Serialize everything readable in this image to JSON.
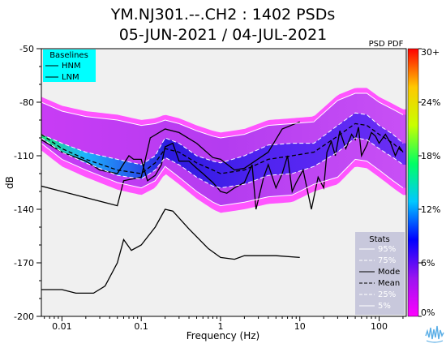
{
  "chart_data": {
    "type": "heatmap",
    "title_line1": "YM.NJ301.--.CH2 : 1402 PSDs",
    "title_line2": "05-JUN-2021 / 04-JUL-2021",
    "xlabel": "Frequency (Hz)",
    "ylabel": "dB",
    "x_scale": "log",
    "xlim": [
      0.0055,
      220
    ],
    "ylim": [
      -200,
      -50
    ],
    "x_ticks": [
      {
        "value": 0.01,
        "label": "0.01"
      },
      {
        "value": 0.1,
        "label": "0.1"
      },
      {
        "value": 1,
        "label": "1"
      },
      {
        "value": 10,
        "label": "10"
      },
      {
        "value": 100,
        "label": "100"
      }
    ],
    "y_ticks": [
      {
        "value": -50,
        "label": "-50"
      },
      {
        "value": -80,
        "label": "-80"
      },
      {
        "value": -110,
        "label": "-110"
      },
      {
        "value": -140,
        "label": "-140"
      },
      {
        "value": -170,
        "label": "-170"
      },
      {
        "value": -200,
        "label": "-200"
      }
    ],
    "colorbar": {
      "title": "PSD PDF",
      "range": [
        0,
        30
      ],
      "ticks": [
        {
          "value": 30,
          "label": "30+"
        },
        {
          "value": 24,
          "label": "24%"
        },
        {
          "value": 18,
          "label": "18%"
        },
        {
          "value": 12,
          "label": "12%"
        },
        {
          "value": 6,
          "label": "6%"
        },
        {
          "value": 0,
          "label": "0%"
        }
      ],
      "colors": [
        "#ff00ff",
        "#9a14f0",
        "#0000ff",
        "#00c8ff",
        "#00ff64",
        "#c8ff00",
        "#ffc800",
        "#ff0000"
      ]
    },
    "baselines_legend": {
      "title": "Baselines",
      "items": [
        "HNM",
        "LNM"
      ],
      "background": "#00ffff"
    },
    "stats_legend": {
      "title": "Stats",
      "items": [
        "95%",
        "75%",
        "Mode",
        "Mean",
        "25%",
        "5%"
      ],
      "background": "#c8c8dc"
    },
    "series": [
      {
        "name": "HNM",
        "style": "solid",
        "color": "#000000",
        "points": [
          [
            0.0055,
            -127
          ],
          [
            0.01,
            -130
          ],
          [
            0.05,
            -138
          ],
          [
            0.06,
            -124
          ],
          [
            0.1,
            -122
          ],
          [
            0.13,
            -100
          ],
          [
            0.2,
            -95
          ],
          [
            0.3,
            -97
          ],
          [
            0.5,
            -103
          ],
          [
            0.8,
            -111
          ],
          [
            1,
            -112
          ],
          [
            1.5,
            -118
          ],
          [
            2,
            -117
          ],
          [
            4,
            -108
          ],
          [
            6,
            -95
          ],
          [
            10,
            -91
          ]
        ]
      },
      {
        "name": "LNM",
        "style": "solid",
        "color": "#000000",
        "points": [
          [
            0.0055,
            -185
          ],
          [
            0.01,
            -185
          ],
          [
            0.015,
            -187
          ],
          [
            0.025,
            -187
          ],
          [
            0.035,
            -183
          ],
          [
            0.05,
            -170
          ],
          [
            0.06,
            -157
          ],
          [
            0.075,
            -163
          ],
          [
            0.1,
            -160
          ],
          [
            0.15,
            -150
          ],
          [
            0.2,
            -140
          ],
          [
            0.25,
            -141
          ],
          [
            0.4,
            -151
          ],
          [
            0.7,
            -162
          ],
          [
            1,
            -167
          ],
          [
            1.5,
            -168
          ],
          [
            2,
            -166
          ],
          [
            3,
            -166
          ],
          [
            5,
            -166
          ],
          [
            10,
            -167
          ]
        ]
      },
      {
        "name": "95%",
        "style": "solid",
        "color": "#ffffff",
        "points": [
          [
            0.0055,
            -80
          ],
          [
            0.01,
            -85
          ],
          [
            0.02,
            -88
          ],
          [
            0.05,
            -90
          ],
          [
            0.1,
            -93
          ],
          [
            0.15,
            -92
          ],
          [
            0.2,
            -90
          ],
          [
            0.3,
            -92
          ],
          [
            0.5,
            -96
          ],
          [
            0.8,
            -99
          ],
          [
            1,
            -100
          ],
          [
            2,
            -98
          ],
          [
            4,
            -93
          ],
          [
            8,
            -92
          ],
          [
            15,
            -91
          ],
          [
            30,
            -79
          ],
          [
            50,
            -75
          ],
          [
            70,
            -75
          ],
          [
            100,
            -80
          ],
          [
            150,
            -84
          ],
          [
            200,
            -87
          ]
        ]
      },
      {
        "name": "75%",
        "style": "dashed",
        "color": "#ffffff",
        "points": [
          [
            0.0055,
            -98
          ],
          [
            0.01,
            -103
          ],
          [
            0.02,
            -108
          ],
          [
            0.05,
            -112
          ],
          [
            0.1,
            -115
          ],
          [
            0.15,
            -110
          ],
          [
            0.2,
            -100
          ],
          [
            0.3,
            -103
          ],
          [
            0.5,
            -110
          ],
          [
            0.8,
            -113
          ],
          [
            1,
            -114
          ],
          [
            2,
            -110
          ],
          [
            4,
            -104
          ],
          [
            8,
            -103
          ],
          [
            15,
            -103
          ],
          [
            30,
            -93
          ],
          [
            50,
            -86
          ],
          [
            70,
            -87
          ],
          [
            100,
            -93
          ],
          [
            150,
            -98
          ],
          [
            200,
            -103
          ]
        ]
      },
      {
        "name": "Mode",
        "style": "solid",
        "color": "#000000",
        "points": [
          [
            0.0055,
            -101
          ],
          [
            0.01,
            -108
          ],
          [
            0.02,
            -113
          ],
          [
            0.03,
            -118
          ],
          [
            0.05,
            -120
          ],
          [
            0.07,
            -110
          ],
          [
            0.08,
            -112
          ],
          [
            0.1,
            -112
          ],
          [
            0.12,
            -124
          ],
          [
            0.15,
            -121
          ],
          [
            0.18,
            -115
          ],
          [
            0.2,
            -105
          ],
          [
            0.25,
            -103
          ],
          [
            0.3,
            -113
          ],
          [
            0.4,
            -113
          ],
          [
            0.5,
            -117
          ],
          [
            0.6,
            -120
          ],
          [
            0.8,
            -125
          ],
          [
            1,
            -130
          ],
          [
            1.2,
            -131
          ],
          [
            1.5,
            -128
          ],
          [
            2,
            -125
          ],
          [
            2.5,
            -115
          ],
          [
            2.8,
            -140
          ],
          [
            3.5,
            -122
          ],
          [
            4,
            -115
          ],
          [
            5,
            -128
          ],
          [
            6,
            -120
          ],
          [
            7,
            -110
          ],
          [
            8,
            -130
          ],
          [
            9,
            -125
          ],
          [
            11,
            -118
          ],
          [
            14,
            -140
          ],
          [
            17,
            -122
          ],
          [
            20,
            -128
          ],
          [
            22,
            -108
          ],
          [
            25,
            -102
          ],
          [
            28,
            -110
          ],
          [
            32,
            -96
          ],
          [
            38,
            -106
          ],
          [
            45,
            -98
          ],
          [
            50,
            -101
          ],
          [
            55,
            -94
          ],
          [
            60,
            -110
          ],
          [
            70,
            -104
          ],
          [
            80,
            -97
          ],
          [
            90,
            -99
          ],
          [
            100,
            -103
          ],
          [
            120,
            -98
          ],
          [
            140,
            -103
          ],
          [
            160,
            -110
          ],
          [
            180,
            -105
          ],
          [
            200,
            -108
          ]
        ]
      },
      {
        "name": "Mean",
        "style": "dashed",
        "color": "#000000",
        "points": [
          [
            0.0055,
            -98
          ],
          [
            0.01,
            -106
          ],
          [
            0.02,
            -112
          ],
          [
            0.05,
            -118
          ],
          [
            0.1,
            -120
          ],
          [
            0.15,
            -114
          ],
          [
            0.2,
            -106
          ],
          [
            0.3,
            -108
          ],
          [
            0.5,
            -114
          ],
          [
            0.8,
            -118
          ],
          [
            1,
            -120
          ],
          [
            2,
            -118
          ],
          [
            4,
            -112
          ],
          [
            8,
            -110
          ],
          [
            15,
            -108
          ],
          [
            30,
            -99
          ],
          [
            50,
            -92
          ],
          [
            70,
            -93
          ],
          [
            100,
            -98
          ],
          [
            150,
            -103
          ],
          [
            200,
            -108
          ]
        ]
      },
      {
        "name": "25%",
        "style": "dashed",
        "color": "#ffffff",
        "points": [
          [
            0.0055,
            -100
          ],
          [
            0.01,
            -108
          ],
          [
            0.02,
            -114
          ],
          [
            0.05,
            -121
          ],
          [
            0.1,
            -123
          ],
          [
            0.15,
            -118
          ],
          [
            0.2,
            -111
          ],
          [
            0.3,
            -115
          ],
          [
            0.5,
            -122
          ],
          [
            0.8,
            -127
          ],
          [
            1,
            -128
          ],
          [
            2,
            -126
          ],
          [
            4,
            -121
          ],
          [
            8,
            -120
          ],
          [
            15,
            -116
          ],
          [
            30,
            -108
          ],
          [
            50,
            -100
          ],
          [
            70,
            -101
          ],
          [
            100,
            -106
          ],
          [
            150,
            -111
          ],
          [
            200,
            -115
          ]
        ]
      },
      {
        "name": "5%",
        "style": "solid",
        "color": "#ffffff",
        "points": [
          [
            0.0055,
            -103
          ],
          [
            0.01,
            -112
          ],
          [
            0.02,
            -118
          ],
          [
            0.05,
            -125
          ],
          [
            0.1,
            -128
          ],
          [
            0.15,
            -124
          ],
          [
            0.2,
            -116
          ],
          [
            0.3,
            -122
          ],
          [
            0.5,
            -130
          ],
          [
            0.8,
            -136
          ],
          [
            1,
            -138
          ],
          [
            2,
            -136
          ],
          [
            4,
            -133
          ],
          [
            8,
            -132
          ],
          [
            15,
            -126
          ],
          [
            30,
            -122
          ],
          [
            50,
            -112
          ],
          [
            70,
            -113
          ],
          [
            100,
            -118
          ],
          [
            150,
            -124
          ],
          [
            200,
            -128
          ]
        ]
      }
    ]
  }
}
